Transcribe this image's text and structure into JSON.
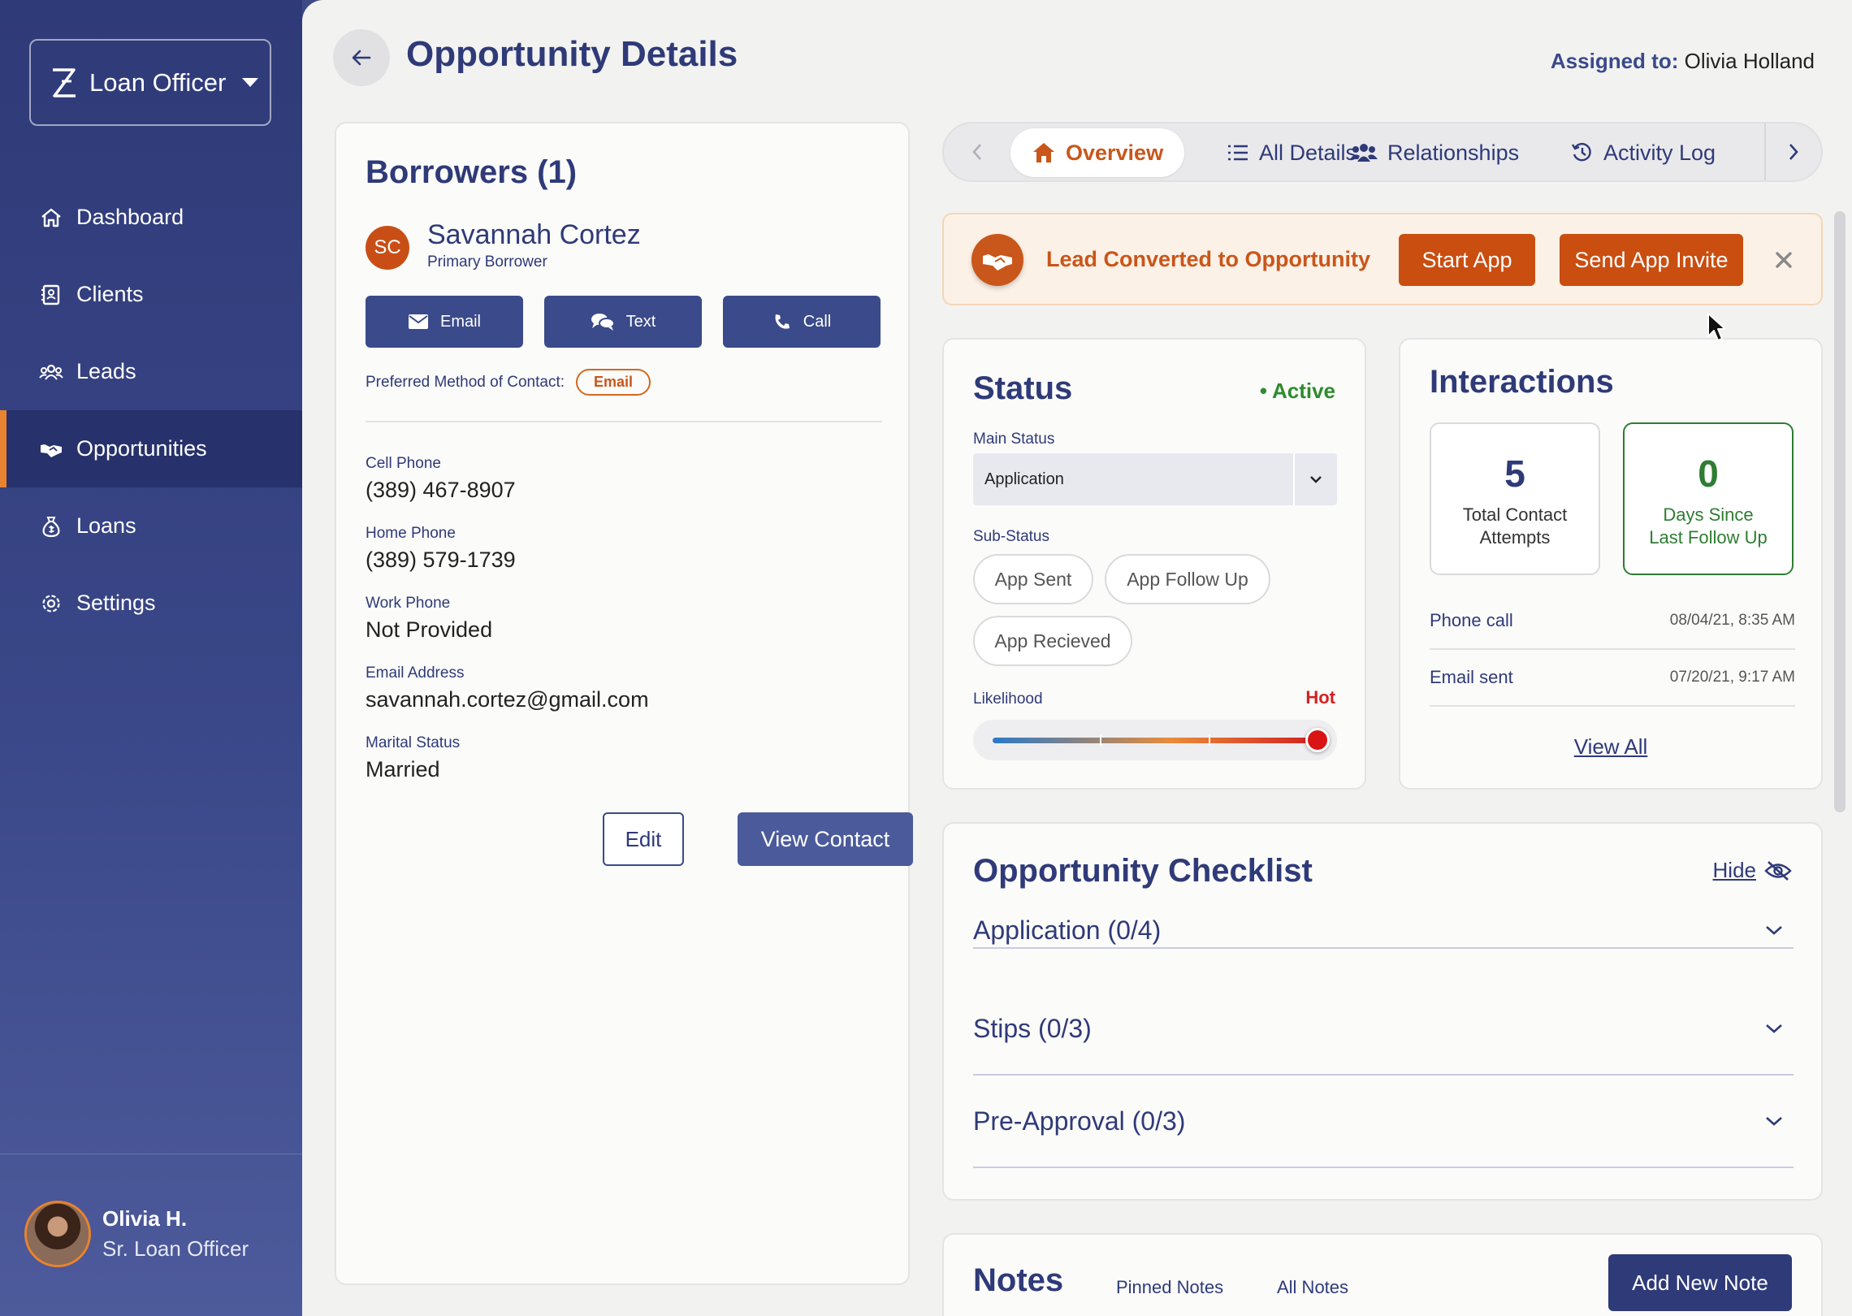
{
  "sidebar": {
    "brand_label": "Loan Officer",
    "nav": [
      {
        "label": "Dashboard",
        "icon": "home-icon"
      },
      {
        "label": "Clients",
        "icon": "contacts-icon"
      },
      {
        "label": "Leads",
        "icon": "users-icon"
      },
      {
        "label": "Opportunities",
        "icon": "handshake-icon",
        "active": true
      },
      {
        "label": "Loans",
        "icon": "money-bag-icon"
      },
      {
        "label": "Settings",
        "icon": "gear-icon"
      }
    ],
    "user": {
      "name": "Olivia H.",
      "role": "Sr. Loan Officer"
    }
  },
  "header": {
    "title": "Opportunity Details",
    "assigned_label": "Assigned to:",
    "assigned_name": "Olivia Holland"
  },
  "borrowers": {
    "title": "Borrowers (1)",
    "initials": "SC",
    "name": "Savannah Cortez",
    "role": "Primary Borrower",
    "buttons": {
      "email": "Email",
      "text": "Text",
      "call": "Call"
    },
    "preferred_label": "Preferred Method of Contact:",
    "preferred_value": "Email",
    "fields": [
      {
        "label": "Cell Phone",
        "value": "(389) 467-8907"
      },
      {
        "label": "Home Phone",
        "value": "(389) 579-1739"
      },
      {
        "label": "Work Phone",
        "value": "Not Provided"
      },
      {
        "label": "Email Address",
        "value": "savannah.cortez@gmail.com"
      },
      {
        "label": "Marital Status",
        "value": "Married"
      }
    ],
    "edit_label": "Edit",
    "view_contact_label": "View Contact"
  },
  "tabs": [
    {
      "label": "Overview",
      "active": true
    },
    {
      "label": "All Details"
    },
    {
      "label": "Relationships"
    },
    {
      "label": "Activity Log"
    }
  ],
  "banner": {
    "text": "Lead Converted to Opportunity",
    "start_app": "Start App",
    "send_invite": "Send App Invite"
  },
  "status": {
    "title": "Status",
    "state": "Active",
    "main_status_label": "Main Status",
    "main_status_value": "Application",
    "sub_status_label": "Sub-Status",
    "sub_statuses": [
      "App Sent",
      "App Follow Up",
      "App Recieved"
    ],
    "likelihood_label": "Likelihood",
    "likelihood_value": "Hot",
    "likelihood_fraction": 1.0
  },
  "interactions": {
    "title": "Interactions",
    "total_attempts": "5",
    "total_attempts_caption_1": "Total Contact",
    "total_attempts_caption_2": "Attempts",
    "days_since": "0",
    "days_since_caption_1": "Days Since",
    "days_since_caption_2": "Last Follow Up",
    "log": [
      {
        "type": "Phone call",
        "date": "08/04/21, 8:35 AM"
      },
      {
        "type": "Email sent",
        "date": "07/20/21, 9:17 AM"
      }
    ],
    "view_all": "View All"
  },
  "checklist": {
    "title": "Opportunity Checklist",
    "hide_label": "Hide",
    "sections": [
      "Application (0/4)",
      "Stips (0/3)",
      "Pre-Approval (0/3)"
    ]
  },
  "notes": {
    "title": "Notes",
    "tabs": [
      "Pinned Notes",
      "All Notes"
    ],
    "add_label": "Add New Note"
  },
  "colors": {
    "primary": "#2f3a78",
    "accent_orange": "#c94e10",
    "success_green": "#2e7d32",
    "hot_red": "#d12222"
  }
}
